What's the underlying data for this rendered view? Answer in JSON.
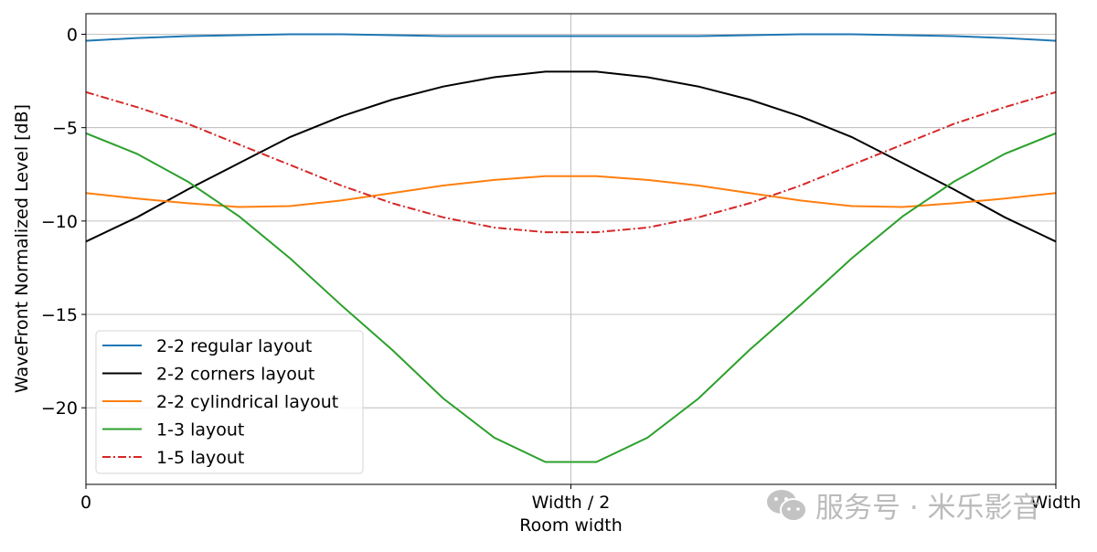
{
  "chart_data": {
    "type": "line",
    "xlabel": "Room width",
    "ylabel": "WaveFront Normalized Level [dB]",
    "x_ticks": [
      {
        "value": 0,
        "label": "0"
      },
      {
        "value": 0.5,
        "label": "Width / 2"
      },
      {
        "value": 1,
        "label": "Width"
      }
    ],
    "y_ticks": [
      0,
      -5,
      -10,
      -15,
      -20
    ],
    "y_tick_labels": [
      "0",
      "−5",
      "−10",
      "−15",
      "−20"
    ],
    "xlim": [
      0,
      1
    ],
    "ylim": [
      -24.1,
      1.1
    ],
    "grid": true,
    "legend_position": "lower-left",
    "x_points": 20,
    "series": [
      {
        "name": "2-2 regular layout",
        "color": "#1f77b4",
        "dash": "solid",
        "half_values": [
          -0.35,
          -0.2,
          -0.1,
          -0.05,
          0,
          0,
          -0.05,
          -0.1,
          -0.1,
          -0.1
        ]
      },
      {
        "name": "2-2 corners layout",
        "color": "#000000",
        "dash": "solid",
        "half_values": [
          -11.1,
          -9.8,
          -8.3,
          -6.9,
          -5.5,
          -4.4,
          -3.5,
          -2.8,
          -2.3,
          -2.0
        ]
      },
      {
        "name": "2-2 cylindrical layout",
        "color": "#ff7f0e",
        "dash": "solid",
        "half_values": [
          -8.5,
          -8.8,
          -9.05,
          -9.25,
          -9.2,
          -8.9,
          -8.5,
          -8.1,
          -7.8,
          -7.6
        ]
      },
      {
        "name": "1-3 layout",
        "color": "#2ca02c",
        "dash": "solid",
        "half_values": [
          -5.3,
          -6.4,
          -7.9,
          -9.75,
          -12.0,
          -14.5,
          -16.9,
          -19.5,
          -21.6,
          -22.9
        ]
      },
      {
        "name": "1-5 layout",
        "color": "#d62728",
        "dash": "dashdot",
        "half_values": [
          -3.1,
          -3.9,
          -4.8,
          -5.9,
          -7.0,
          -8.1,
          -9.05,
          -9.8,
          -10.35,
          -10.6
        ]
      }
    ]
  },
  "watermark": {
    "text": "服务号 · 米乐影音",
    "icon": "wechat-icon"
  }
}
